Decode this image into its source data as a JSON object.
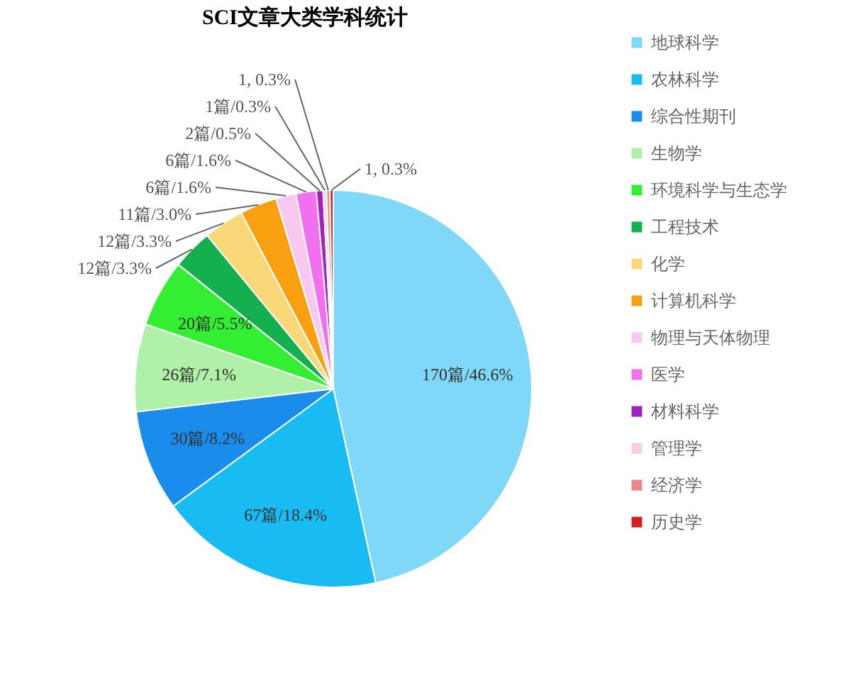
{
  "chart_data": {
    "type": "pie",
    "title": "SCI文章大类学科统计",
    "categories": [
      "地球科学",
      "农林科学",
      "综合性期刊",
      "生物学",
      "环境科学与生态学",
      "工程技术",
      "化学",
      "计算机科学",
      "物理与天体物理",
      "医学",
      "材料科学",
      "管理学",
      "经济学",
      "历史学"
    ],
    "values": [
      170,
      67,
      30,
      26,
      20,
      12,
      12,
      11,
      6,
      6,
      2,
      1,
      1,
      1
    ],
    "colors": [
      "#80d8f8",
      "#18bcf2",
      "#1a8cec",
      "#b0f0a8",
      "#33ee33",
      "#14b050",
      "#f8d878",
      "#f8a010",
      "#f8c8f0",
      "#f070f0",
      "#a020c0",
      "#f8d0d8",
      "#e88888",
      "#d02020"
    ],
    "value_labels": [
      "170篇/46.6%",
      "67篇/18.4%",
      "30篇/8.2%",
      "26篇/7.1%",
      "20篇/5.5%",
      "12篇/3.3%",
      "12篇/3.3%",
      "11篇/3.0%",
      "6篇/1.6%",
      "6篇/1.6%",
      "2篇/0.5%",
      "1篇/0.3%",
      "1, 0.3%",
      "1, 0.3%"
    ],
    "legend": "right"
  }
}
